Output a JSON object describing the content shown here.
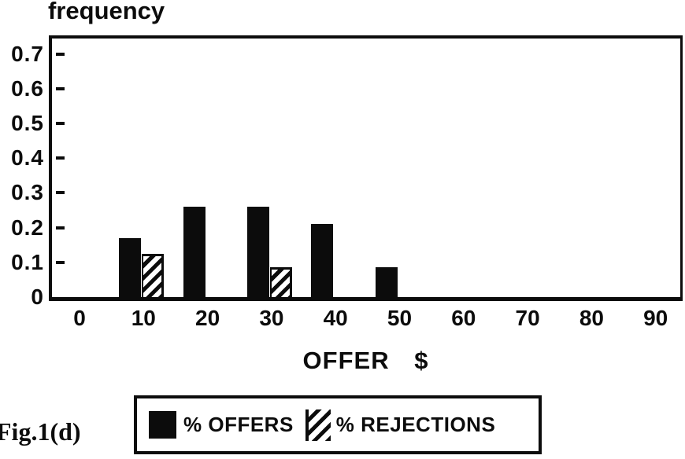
{
  "figure": {
    "title": "frequency",
    "x_axis_title": "OFFER $",
    "caption": "Fig.1(d)"
  },
  "chart_data": {
    "type": "bar",
    "title": "frequency",
    "xlabel": "OFFER $",
    "ylabel": "frequency",
    "categories": [
      "0",
      "10",
      "20",
      "30",
      "40",
      "50",
      "60",
      "70",
      "80",
      "90"
    ],
    "series": [
      {
        "name": "% OFFERS",
        "style": "solid",
        "values": [
          0,
          0.17,
          0.26,
          0.26,
          0.21,
          0.085,
          0,
          0,
          0,
          0
        ]
      },
      {
        "name": "% REJECTIONS",
        "style": "hatched",
        "values": [
          0,
          0.125,
          0,
          0.085,
          0,
          0,
          0,
          0,
          0,
          0
        ]
      }
    ],
    "yticks": [
      0,
      0.1,
      0.2,
      0.3,
      0.4,
      0.5,
      0.6,
      0.7
    ],
    "ylim": [
      0,
      0.75
    ],
    "grid": false,
    "legend_position": "bottom"
  },
  "legend": {
    "items": [
      {
        "label": "% OFFERS",
        "marker": "solid-black-square"
      },
      {
        "label": "% REJECTIONS",
        "marker": "hatched-square"
      }
    ]
  },
  "colors": {
    "ink": "#0c0c0c",
    "paper": "#ffffff"
  }
}
